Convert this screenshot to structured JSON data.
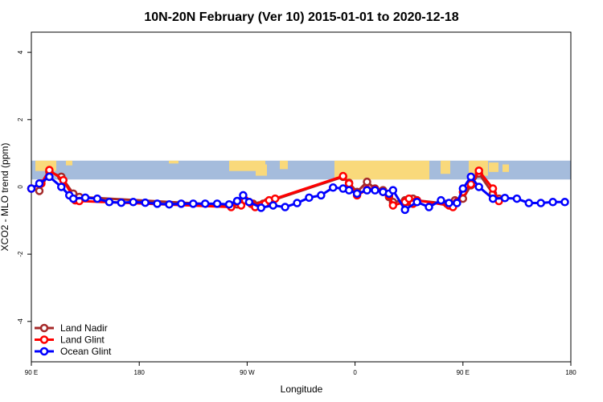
{
  "chart_data": {
    "type": "line",
    "title": "10N-20N February (Ver 10)   2015-01-01 to 2020-12-18",
    "xlabel": "Longitude",
    "ylabel": "XCO2 - MLO trend (ppm)",
    "xlim": [
      -90,
      180
    ],
    "ylim": [
      -5.2,
      4.6
    ],
    "x_ticks": [
      {
        "value": -90,
        "label": "90 E"
      },
      {
        "value": -36,
        "label": "180"
      },
      {
        "value": 18,
        "label": "90 W"
      },
      {
        "value": 72,
        "label": "0"
      },
      {
        "value": 126,
        "label": "90 E"
      },
      {
        "value": 180,
        "label": "180"
      }
    ],
    "y_ticks": [
      {
        "value": -4,
        "label": "-4"
      },
      {
        "value": -2,
        "label": "-2"
      },
      {
        "value": 0,
        "label": "0"
      },
      {
        "value": 2,
        "label": "2"
      },
      {
        "value": 4,
        "label": "4"
      }
    ],
    "background_strip": {
      "y_range": [
        0.22,
        0.78
      ],
      "ocean_color": "#a5bcdc",
      "land_color": "#f9d97b"
    },
    "legend_position": "bottom-left",
    "series": [
      {
        "name": "Land Nadir",
        "color": "#a52a2a",
        "x": [
          -90,
          -86,
          -81,
          -75,
          -69,
          -66,
          10,
          13,
          15,
          17,
          19,
          21,
          24,
          26,
          28,
          66,
          69,
          73,
          78,
          82,
          86,
          89,
          91,
          97,
          99,
          101,
          103,
          118,
          120,
          122,
          126,
          130,
          134,
          141,
          144
        ],
        "y": [
          -0.05,
          -0.12,
          0.45,
          0.3,
          -0.2,
          -0.3,
          -0.55,
          -0.52,
          -0.48,
          -0.4,
          -0.45,
          -0.5,
          -0.55,
          -0.5,
          -0.45,
          0.3,
          0.12,
          -0.15,
          0.15,
          -0.05,
          -0.1,
          -0.3,
          -0.45,
          -0.4,
          -0.45,
          -0.35,
          -0.4,
          -0.5,
          -0.55,
          -0.4,
          -0.35,
          0.05,
          0.4,
          -0.2,
          -0.35
        ]
      },
      {
        "name": "Land Glint",
        "color": "#ff0000",
        "x": [
          -90,
          -85,
          -81,
          -74,
          -68,
          -66,
          10,
          13,
          15,
          17,
          20,
          22,
          25,
          27,
          29,
          32,
          66,
          69,
          73,
          78,
          82,
          86,
          89,
          91,
          97,
          99,
          101,
          103,
          119,
          121,
          123,
          126,
          130,
          134,
          141,
          144
        ],
        "y": [
          -0.05,
          0.1,
          0.5,
          0.2,
          -0.4,
          -0.42,
          -0.6,
          -0.45,
          -0.55,
          -0.4,
          -0.5,
          -0.6,
          -0.55,
          -0.5,
          -0.4,
          -0.35,
          0.32,
          0.1,
          -0.25,
          -0.08,
          -0.08,
          -0.15,
          -0.25,
          -0.55,
          -0.45,
          -0.35,
          -0.5,
          -0.4,
          -0.55,
          -0.6,
          -0.45,
          -0.15,
          0.08,
          0.48,
          -0.05,
          -0.42
        ]
      },
      {
        "name": "Ocean Glint",
        "color": "#0000ff",
        "x": [
          -90,
          -86,
          -81,
          -75,
          -71,
          -69,
          -63,
          -57,
          -51,
          -45,
          -39,
          -33,
          -27,
          -21,
          -15,
          -9,
          -3,
          3,
          9,
          13,
          16,
          19,
          25,
          31,
          37,
          43,
          49,
          55,
          61,
          66,
          69,
          73,
          78,
          82,
          86,
          89,
          91,
          97,
          103,
          109,
          115,
          119,
          123,
          126,
          130,
          134,
          141,
          147,
          153,
          159,
          165,
          171,
          177
        ],
        "y": [
          -0.05,
          0.1,
          0.3,
          0.0,
          -0.25,
          -0.35,
          -0.32,
          -0.35,
          -0.45,
          -0.47,
          -0.45,
          -0.47,
          -0.5,
          -0.52,
          -0.5,
          -0.5,
          -0.5,
          -0.5,
          -0.52,
          -0.42,
          -0.25,
          -0.45,
          -0.62,
          -0.55,
          -0.6,
          -0.48,
          -0.32,
          -0.25,
          -0.02,
          -0.05,
          -0.1,
          -0.2,
          -0.1,
          -0.1,
          -0.15,
          -0.2,
          -0.1,
          -0.68,
          -0.45,
          -0.6,
          -0.4,
          -0.48,
          -0.48,
          -0.05,
          0.3,
          0.0,
          -0.35,
          -0.33,
          -0.35,
          -0.48,
          -0.48,
          -0.45,
          -0.45
        ]
      }
    ]
  }
}
